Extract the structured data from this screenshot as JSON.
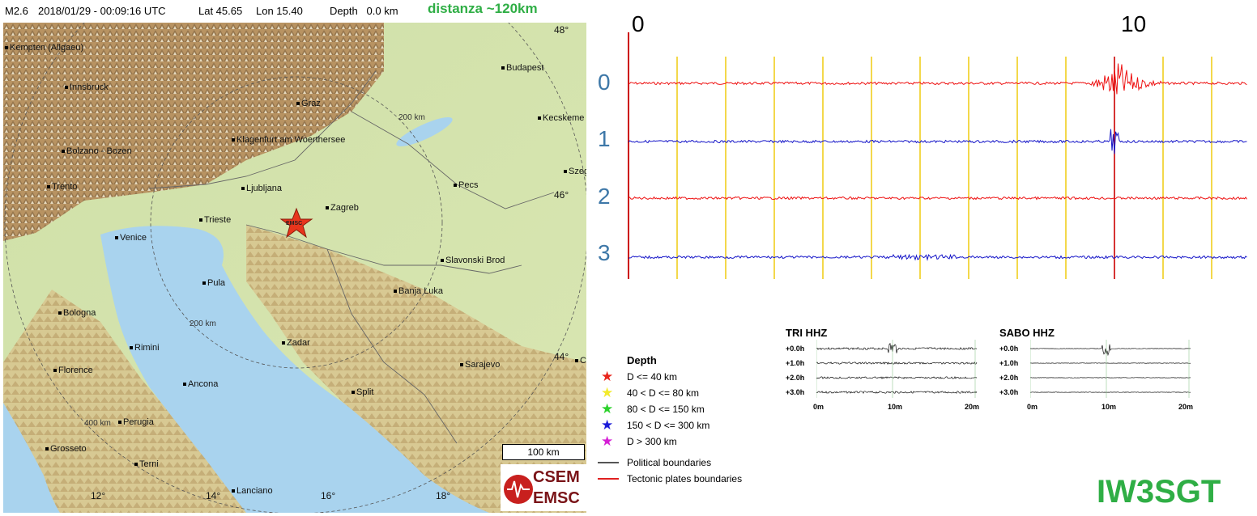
{
  "header": {
    "magnitude": "M2.6",
    "datetime": "2018/01/29 - 00:09:16 UTC",
    "lat": "Lat 45.65",
    "lon": "Lon 15.40",
    "depth": "Depth   0.0 km",
    "distance": "distanza ~120km"
  },
  "map": {
    "cities": [
      {
        "name": "Kempten (Allgaeu)"
      },
      {
        "name": "Innsbruck"
      },
      {
        "name": "Bolzano - Bozen"
      },
      {
        "name": "Trento"
      },
      {
        "name": "Graz"
      },
      {
        "name": "Klagenfurt am Woerthersee"
      },
      {
        "name": "Ljubljana"
      },
      {
        "name": "Budapest"
      },
      {
        "name": "Kecskeme"
      },
      {
        "name": "Szeg"
      },
      {
        "name": "Pecs"
      },
      {
        "name": "Zagreb"
      },
      {
        "name": "Trieste"
      },
      {
        "name": "Venice"
      },
      {
        "name": "Pula"
      },
      {
        "name": "Slavonski Brod"
      },
      {
        "name": "Banja Luka"
      },
      {
        "name": "Bologna"
      },
      {
        "name": "Rimini"
      },
      {
        "name": "Zadar"
      },
      {
        "name": "Florence"
      },
      {
        "name": "Ancona"
      },
      {
        "name": "Sarajevo"
      },
      {
        "name": "Split"
      },
      {
        "name": "Perugia"
      },
      {
        "name": "Grosseto"
      },
      {
        "name": "Terni"
      },
      {
        "name": "Lanciano"
      },
      {
        "name": "C"
      }
    ],
    "lat_labels": [
      "48°",
      "46°",
      "44°"
    ],
    "lon_labels": [
      "12°",
      "14°",
      "16°",
      "18°"
    ],
    "ring_labels": [
      "200 km",
      "200 km",
      "400 km"
    ],
    "epicenter_label": "EMSC",
    "scale": "100 km",
    "logo_top": "CSEM",
    "logo_bottom": "EMSC"
  },
  "legend": {
    "title": "Depth",
    "depth_classes": [
      {
        "label": "D <= 40 km",
        "color": "#e8251c"
      },
      {
        "label": "40 < D <= 80 km",
        "color": "#f2ea2b"
      },
      {
        "label": "80 < D <= 150 km",
        "color": "#2bd12b"
      },
      {
        "label": "150 < D <= 300 km",
        "color": "#1b1bd8"
      },
      {
        "label": "D > 300 km",
        "color": "#d51fd5"
      }
    ],
    "lines": [
      {
        "label": "Political boundaries",
        "color": "#555555"
      },
      {
        "label": "Tectonic plates boundaries",
        "color": "#e02020"
      }
    ]
  },
  "seismogram": {
    "minute_labels": [
      "0",
      "10"
    ],
    "trace_labels": [
      "0",
      "1",
      "2",
      "3"
    ],
    "trace_colors": [
      "#ee1111",
      "#1414c8",
      "#ee1111",
      "#1414c8"
    ],
    "event_minute": 10
  },
  "mini_panels": [
    {
      "title": "TRI HHZ",
      "hours": [
        "+0.0h",
        "+1.0h",
        "+2.0h",
        "+3.0h"
      ],
      "ticks": [
        "0m",
        "10m",
        "20m"
      ]
    },
    {
      "title": "SABO HHZ",
      "hours": [
        "+0.0h",
        "+1.0h",
        "+2.0h",
        "+3.0h"
      ],
      "ticks": [
        "0m",
        "10m",
        "20m"
      ]
    }
  ],
  "callsign": "IW3SGT"
}
